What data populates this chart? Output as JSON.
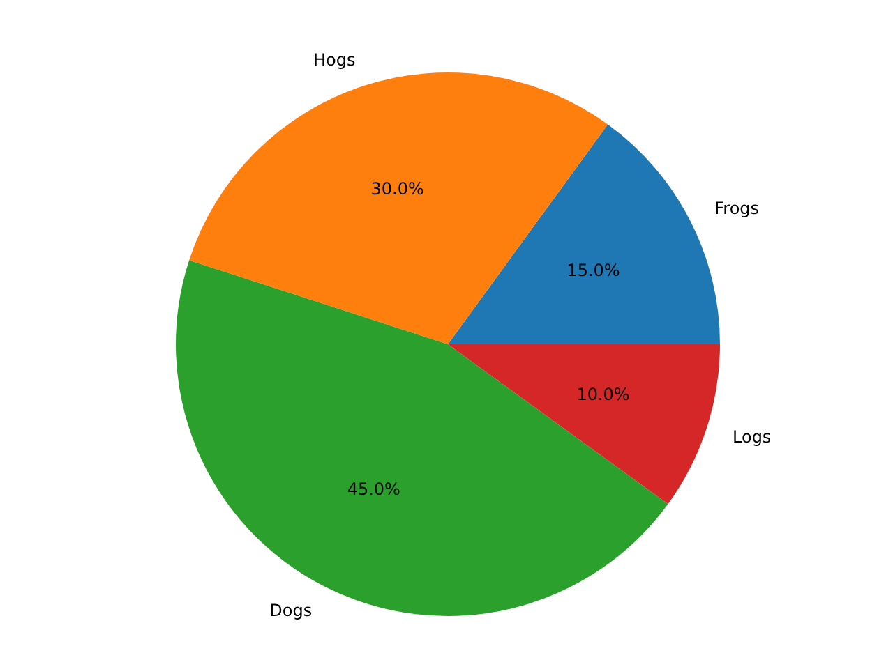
{
  "chart_data": {
    "type": "pie",
    "categories": [
      "Frogs",
      "Hogs",
      "Dogs",
      "Logs"
    ],
    "values": [
      15,
      30,
      45,
      10
    ],
    "colors": [
      "#1f77b4",
      "#ff7f0e",
      "#2ca02c",
      "#d62728"
    ],
    "value_labels": [
      "15.0%",
      "30.0%",
      "45.0%",
      "10.0%"
    ]
  }
}
